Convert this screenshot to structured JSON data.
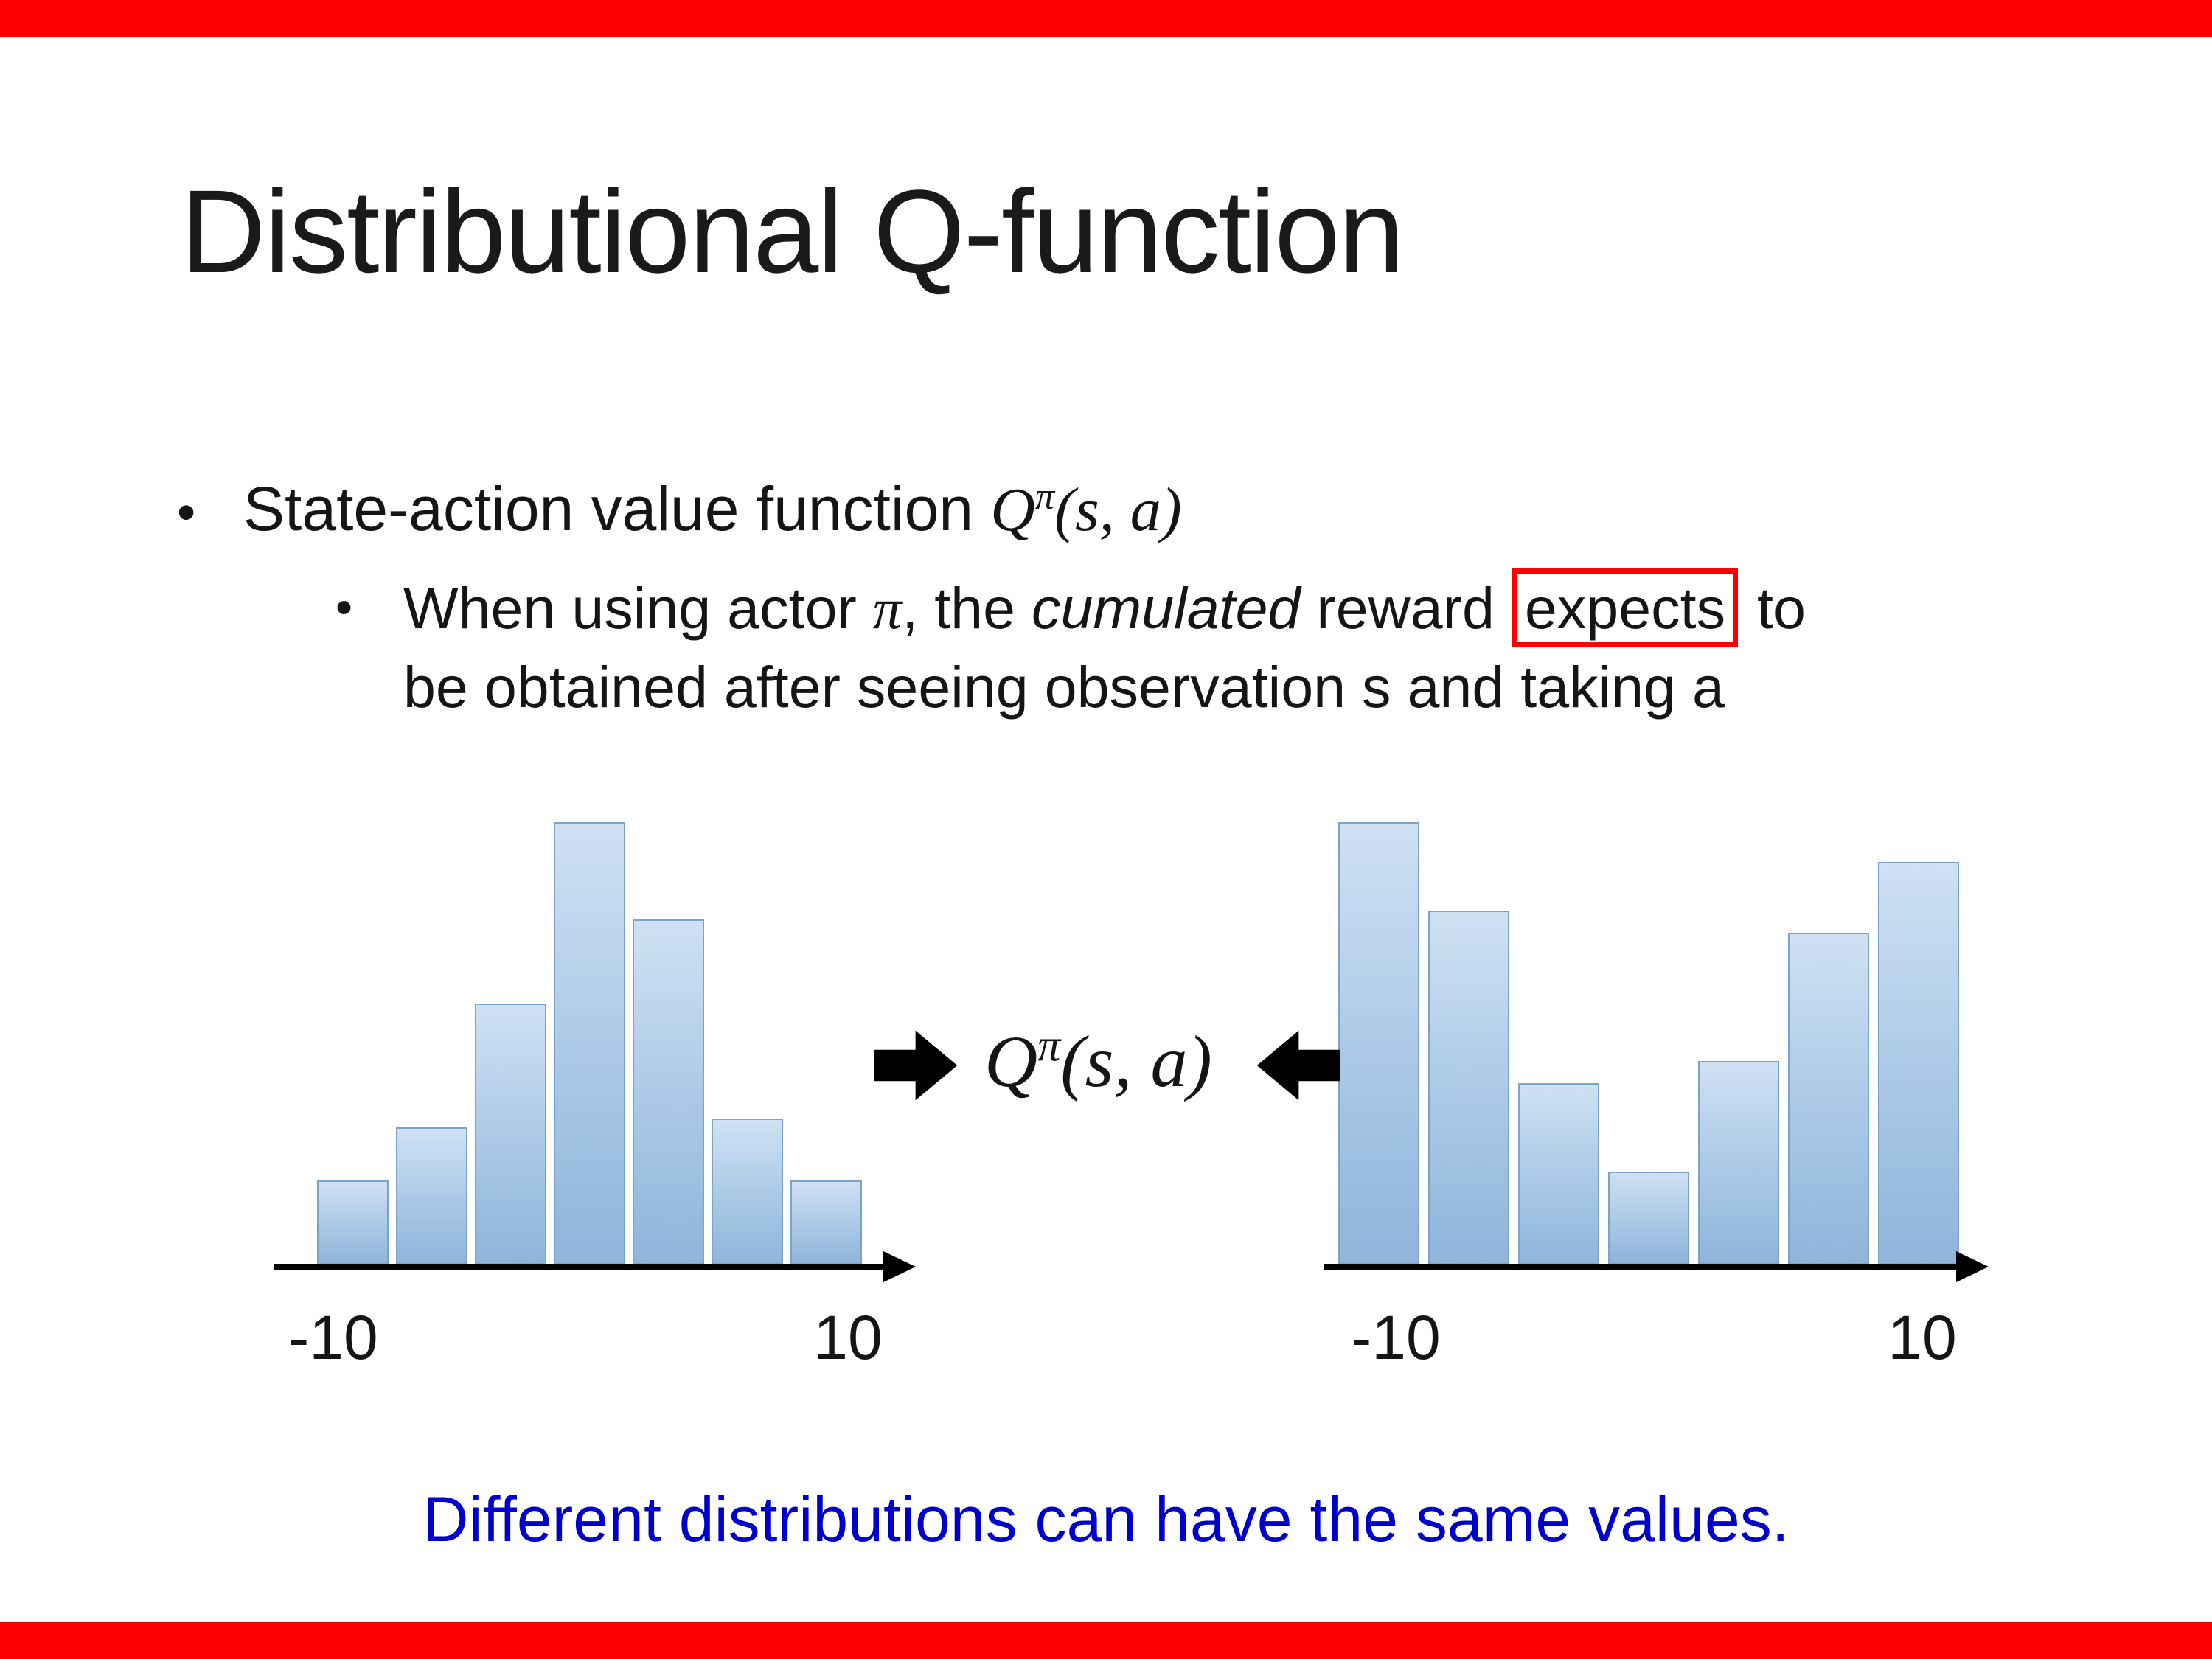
{
  "slide": {
    "title": "Distributional Q-function",
    "bullet_marker": "•",
    "bullet1": {
      "text": "State-action value function "
    },
    "math": {
      "q": "Q",
      "pi": "π",
      "args": "(s, a)"
    },
    "sub_bullet": {
      "part1": "When using actor ",
      "pi": "π",
      "part2": ", the ",
      "italic_word": "cumulated",
      "part3": " reward ",
      "boxed_word": "expects",
      "part4": " to",
      "line2": "be obtained after seeing observation s and taking a"
    },
    "conclusion": "Different distributions can have the same values."
  },
  "colors": {
    "accent_red": "#ff0000",
    "conclusion_blue": "#0000cc",
    "bar_fill_light": "#cfe1f3",
    "bar_fill_dark": "#8fb5da",
    "bar_border": "#7ba2c7",
    "arrow_black": "#000000"
  },
  "chart_data": [
    {
      "type": "bar",
      "name": "left-distribution-histogram",
      "title": "",
      "xlabel": "",
      "ylabel": "",
      "x_axis_ticks": [
        "-10",
        "10"
      ],
      "xlim": [
        -10,
        10
      ],
      "values": [
        0.19,
        0.31,
        0.59,
        1.0,
        0.78,
        0.33,
        0.19
      ],
      "shape_note": "unimodal bell-shaped distribution",
      "legend": "none",
      "grid": "off"
    },
    {
      "type": "bar",
      "name": "right-distribution-histogram",
      "title": "",
      "xlabel": "",
      "ylabel": "",
      "x_axis_ticks": [
        "-10",
        "10"
      ],
      "xlim": [
        -10,
        10
      ],
      "values": [
        1.0,
        0.8,
        0.41,
        0.21,
        0.46,
        0.75,
        0.91
      ],
      "shape_note": "bimodal U-shaped distribution",
      "legend": "none",
      "grid": "off"
    }
  ]
}
